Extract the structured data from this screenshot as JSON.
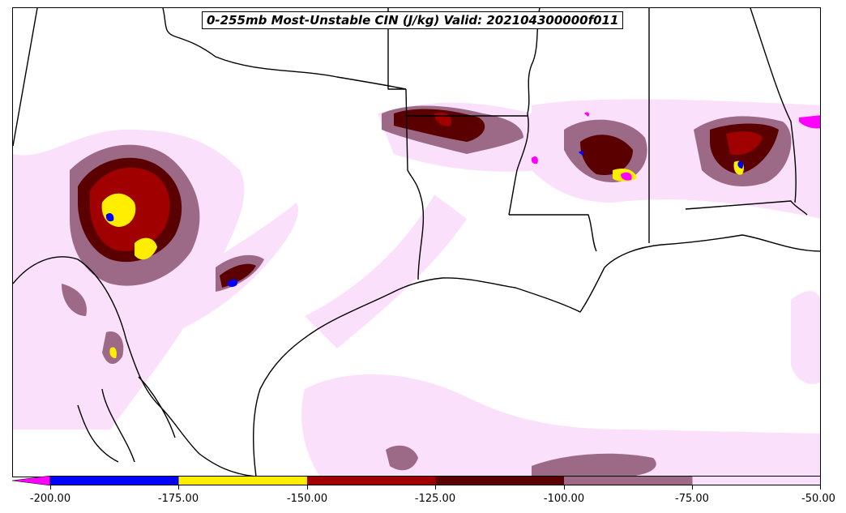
{
  "title": "0-255mb Most-Unstable CIN (J/kg) Valid: 202104300000f011",
  "colorbar": {
    "ticks": [
      "-200.00",
      "-175.00",
      "-150.00",
      "-125.00",
      "-100.00",
      "-75.00",
      "-50.00"
    ],
    "tick_values": [
      -200,
      -175,
      -150,
      -125,
      -100,
      -75,
      -50
    ],
    "extend": "min",
    "colors": {
      "below_-200": "#ff00ff",
      "-200_-175": "#0000ff",
      "-175_-150": "#ffee00",
      "-150_-125": "#a00000",
      "-125_-100": "#5a0000",
      "-100_-75": "#9c6a87",
      "-75_-50": "#fbe0fb"
    }
  }
}
